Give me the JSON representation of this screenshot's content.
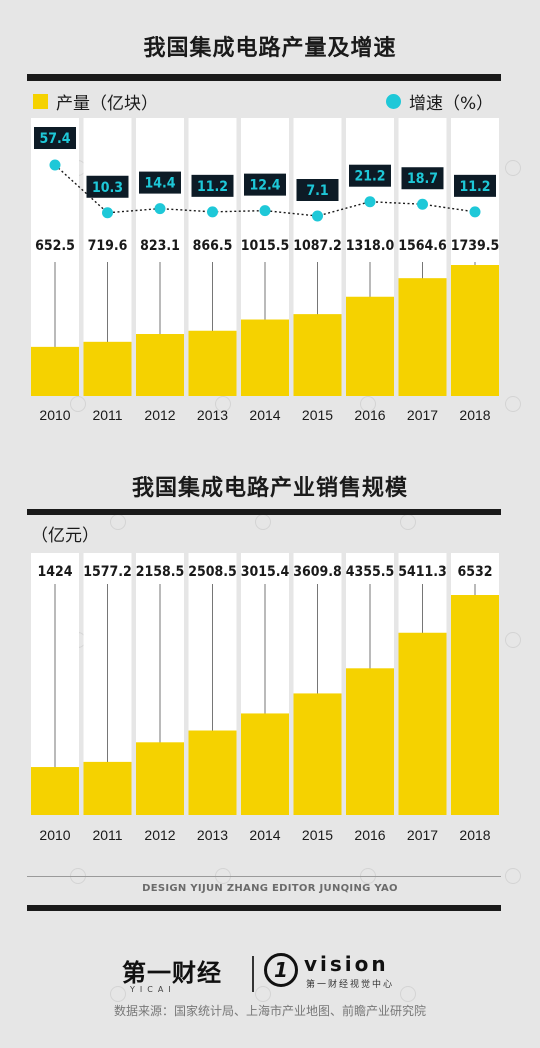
{
  "colors": {
    "bar": "#f5d200",
    "growth": "#1ec8d8",
    "rule": "#1a1a1a",
    "panel": "#ffffff",
    "label_box": "#0d1b26"
  },
  "chart1": {
    "title": "我国集成电路产量及增速",
    "legend_output": "产量（亿块",
    "legend_output_close": "）",
    "legend_growth": "增速（%",
    "legend_growth_close": "）"
  },
  "chart2": {
    "title": "我国集成电路产业销售规模",
    "unit": "（亿元）"
  },
  "footer": {
    "credits": "DESIGN YIJUN ZHANG    EDITOR JUNQING YAO",
    "logo_yicai": "第一财经",
    "logo_yicai_sub": "YICAI",
    "logo_vision_mark": "1",
    "logo_vision": "vision",
    "logo_vision_sub": "第一财经视觉中心",
    "source": "数据来源：国家统计局、上海市产业地图、前瞻产业研究院"
  },
  "chart_data": [
    {
      "type": "bar",
      "title": "我国集成电路产量及增速",
      "categories": [
        "2010",
        "2011",
        "2012",
        "2013",
        "2014",
        "2015",
        "2016",
        "2017",
        "2018"
      ],
      "series": [
        {
          "name": "产量（亿块）",
          "type": "bar",
          "values": [
            652.5,
            719.6,
            823.1,
            866.5,
            1015.5,
            1087.2,
            1318.0,
            1564.6,
            1739.5
          ],
          "labels": [
            "652.5",
            "719.6",
            "823.1",
            "866.5",
            "1015.5",
            "1087.2",
            "1318.0",
            "1564.6",
            "1739.5"
          ]
        },
        {
          "name": "增速（%）",
          "type": "line",
          "values": [
            57.4,
            10.3,
            14.4,
            11.2,
            12.4,
            7.1,
            21.2,
            18.7,
            11.2
          ],
          "labels": [
            "57.4",
            "10.3",
            "14.4",
            "11.2",
            "12.4",
            "7.1",
            "21.2",
            "18.7",
            "11.2"
          ]
        }
      ],
      "legend_position": "top"
    },
    {
      "type": "bar",
      "title": "我国集成电路产业销售规模",
      "ylabel": "（亿元）",
      "categories": [
        "2010",
        "2011",
        "2012",
        "2013",
        "2014",
        "2015",
        "2016",
        "2017",
        "2018"
      ],
      "values": [
        1424,
        1577.2,
        2158.5,
        2508.5,
        3015.4,
        3609.8,
        4355.5,
        5411.3,
        6532
      ],
      "labels": [
        "1424",
        "1577.2",
        "2158.5",
        "2508.5",
        "3015.4",
        "3609.8",
        "4355.5",
        "5411.3",
        "6532"
      ]
    }
  ]
}
